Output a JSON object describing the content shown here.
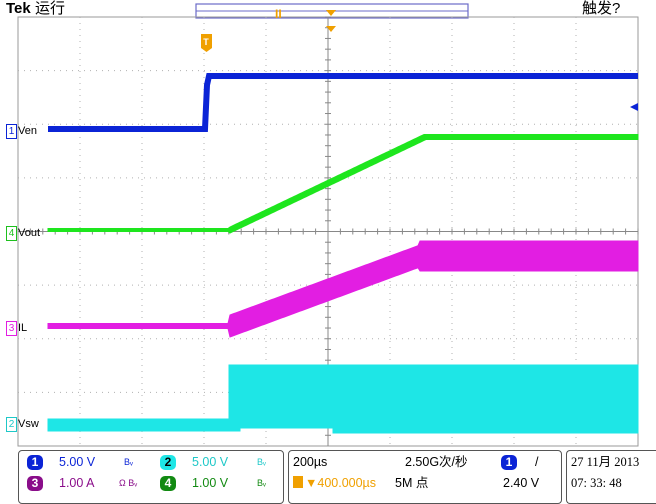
{
  "header": {
    "brand": "Tek",
    "run_state": "运行",
    "trigger_state": "触发?",
    "record_marker": "T"
  },
  "channels": [
    {
      "id": "1",
      "label": "Ven",
      "color": "#0b24d6"
    },
    {
      "id": "4",
      "label": "Vout",
      "color": "#1ee61e"
    },
    {
      "id": "3",
      "label": "IL",
      "color": "#e21ee2"
    },
    {
      "id": "2",
      "label": "Vsw",
      "color": "#1ee6e6"
    }
  ],
  "readout": {
    "ch1": {
      "num": "1",
      "scale": "5.00 V",
      "coupling": "Bᵥ"
    },
    "ch2": {
      "num": "2",
      "scale": "5.00 V",
      "coupling": "Bᵥ"
    },
    "ch3": {
      "num": "3",
      "scale": "1.00 A",
      "coupling": "Ω Bᵥ"
    },
    "ch4": {
      "num": "4",
      "scale": "1.00 V",
      "coupling": "Bᵥ"
    },
    "timebase": "200µs",
    "trigger_pos": "▼400.000µs",
    "sample_rate": "2.50G次/秒",
    "record_length": "5M 点",
    "trigger_src": "1",
    "trigger_slope": "/",
    "trigger_level": "2.40 V",
    "date": "27 11月 2013",
    "time": "07: 33: 48"
  },
  "colors": {
    "ch1": "#0b24d6",
    "ch2": "#1ee6e6",
    "ch3": "#e21ee2",
    "ch4": "#1ee61e",
    "trigger_marker": "#f0a000",
    "grid": "#888888"
  }
}
